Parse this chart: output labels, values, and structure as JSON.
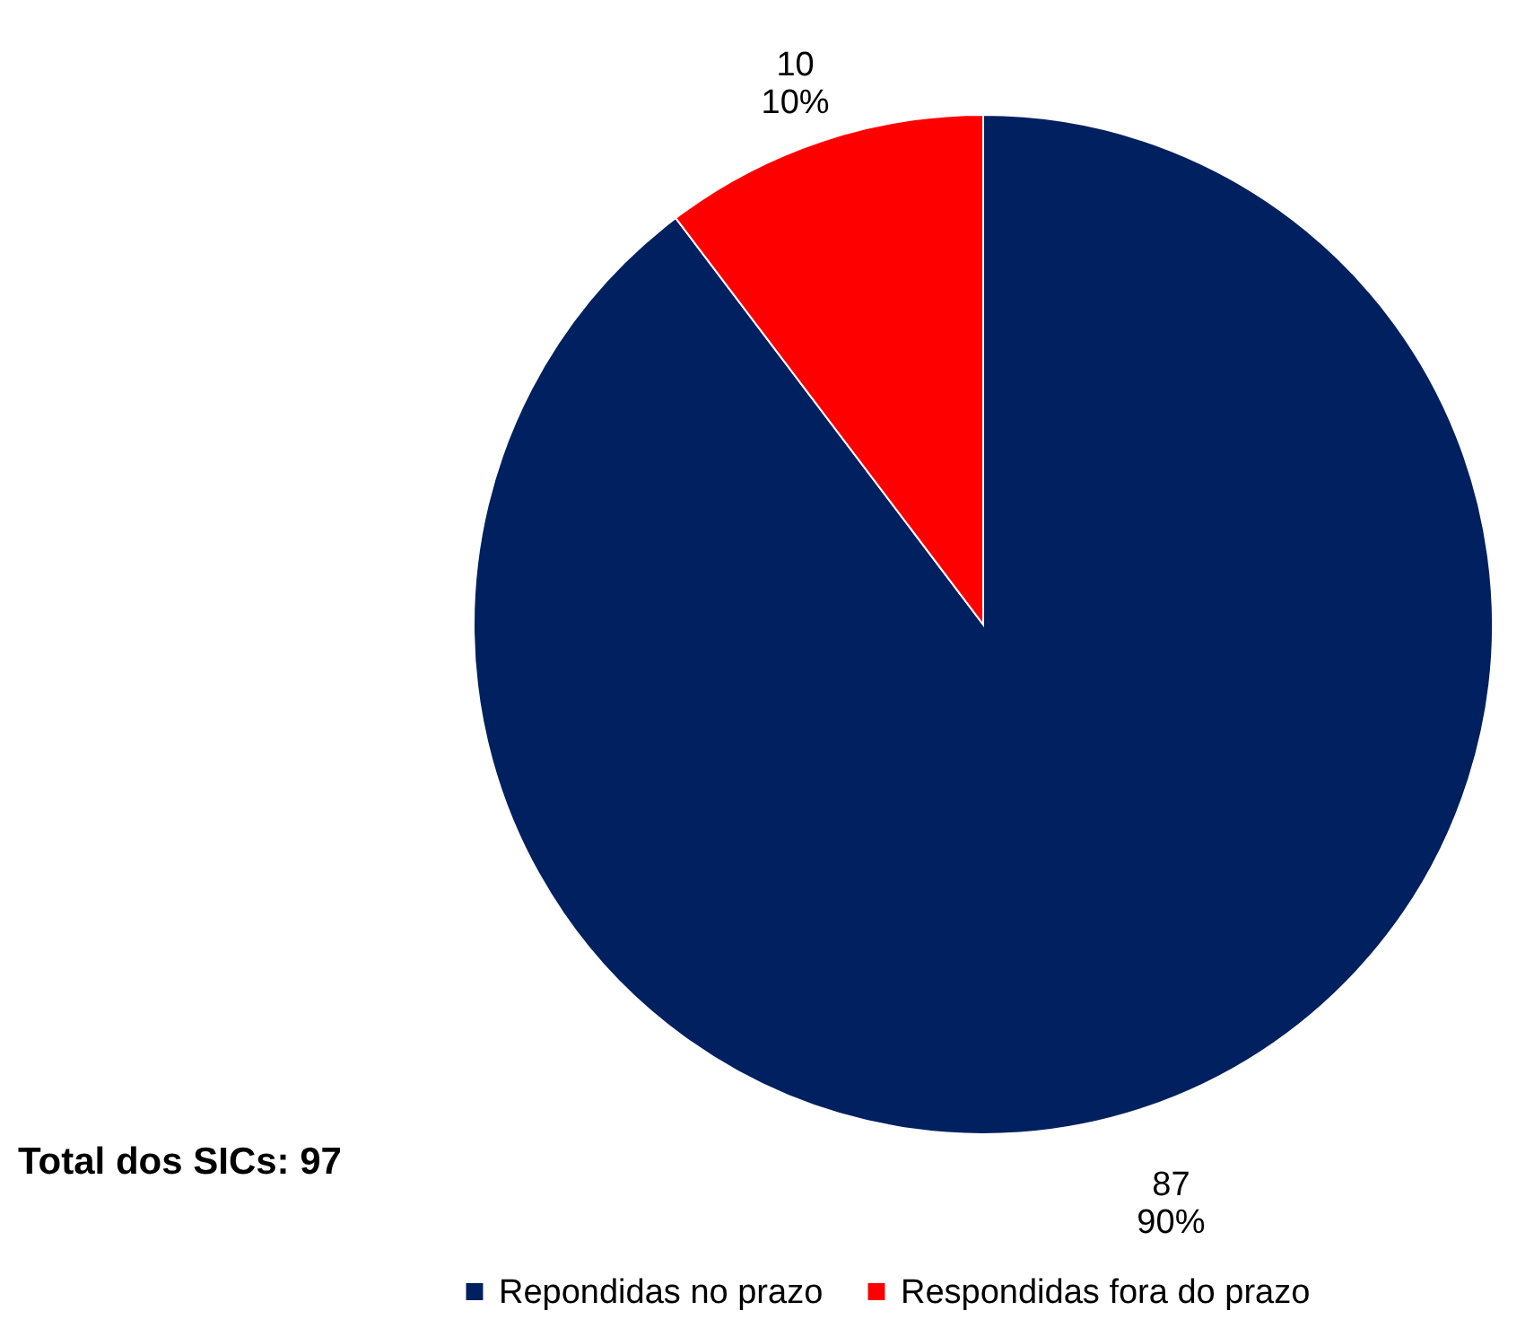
{
  "chart_data": {
    "type": "pie",
    "categories": [
      "Repondidas no prazo",
      "Respondidas fora do prazo"
    ],
    "values": [
      87,
      10
    ],
    "colors": [
      "#002060",
      "#ff0000"
    ],
    "value_labels": [
      "87\n90%",
      "10\n10%"
    ],
    "annotations": [
      "Total dos SICs: 97"
    ],
    "legend": "bottom"
  }
}
